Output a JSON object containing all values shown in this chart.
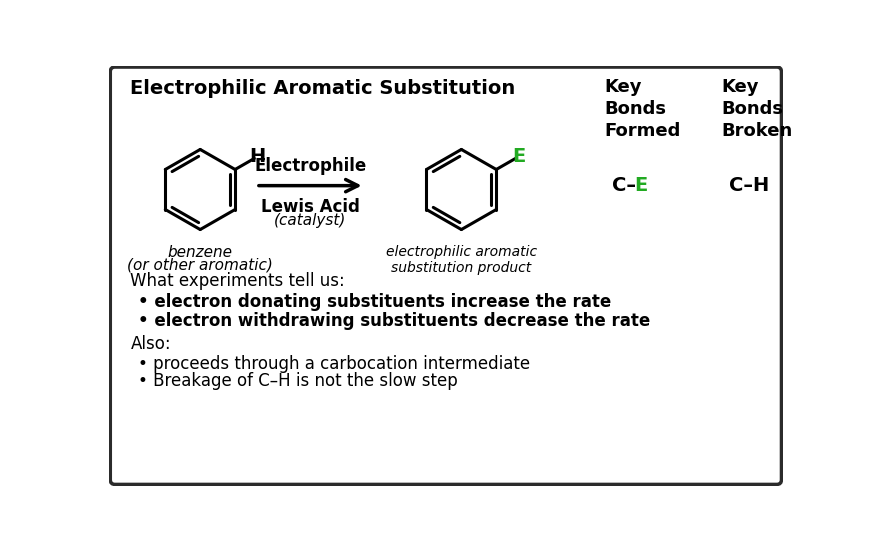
{
  "title": "Electrophilic Aromatic Substitution",
  "title_fontsize": 14,
  "background_color": "#ffffff",
  "border_color": "#2b2b2b",
  "text_color": "#000000",
  "green_color": "#22aa22",
  "label_electrophile": "Electrophile",
  "label_lewis_acid": "Lewis Acid",
  "label_catalyst": "(catalyst)",
  "label_benzene": "benzene",
  "label_aromatic": "(or other aromatic)",
  "label_product": "electrophilic aromatic\nsubstitution product",
  "label_key_bonds_formed": "Key\nBonds\nFormed",
  "label_key_bonds_broken": "Key\nBonds\nBroken",
  "section_what": "What experiments tell us:",
  "bullet1": "• electron donating substituents increase the rate",
  "bullet2": "• electron withdrawing substituents decrease the rate",
  "section_also": "Also:",
  "bullet3": "• proceeds through a carbocation intermediate",
  "bullet4": "• Breakage of C–H is not the slow step"
}
